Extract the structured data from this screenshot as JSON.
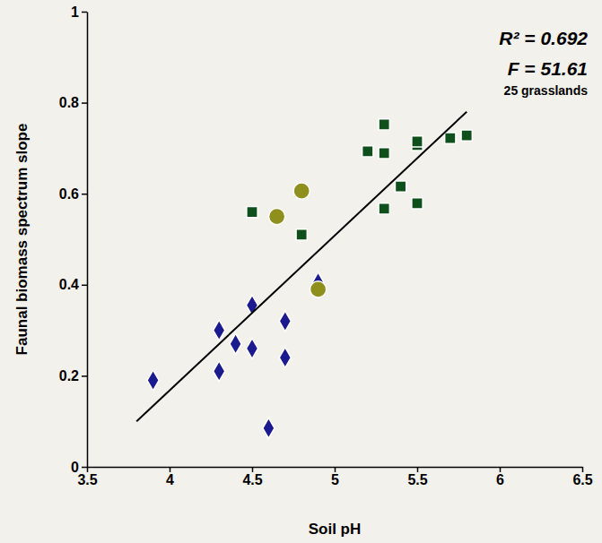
{
  "chart_data": {
    "type": "scatter",
    "x_label": "Soil pH",
    "y_label": "Faunal biomass spectrum slope",
    "annotations": [
      "R² = 0.692",
      "F = 51.61",
      "25 grasslands"
    ],
    "xlim": [
      3.5,
      6.5
    ],
    "xticks": [
      3.5,
      4,
      4.5,
      5,
      5.5,
      6,
      6.5
    ],
    "ylim": [
      0,
      1
    ],
    "yticks": [
      0,
      0.2,
      0.4,
      0.6,
      0.8,
      1
    ],
    "grid": false,
    "series": [
      {
        "type": "scatter",
        "marker": "diamond",
        "color": "#1b1b8f",
        "x": [
          3.9,
          4.3,
          4.3,
          4.4,
          4.5,
          4.5,
          4.7,
          4.7,
          4.6,
          4.9
        ],
        "values": [
          0.19,
          0.3,
          0.21,
          0.27,
          0.355,
          0.26,
          0.32,
          0.24,
          0.085,
          0.405
        ]
      },
      {
        "type": "scatter",
        "marker": "square",
        "color": "#0e4f1c",
        "x": [
          4.5,
          4.8,
          5.2,
          5.3,
          5.3,
          5.3,
          5.4,
          5.5,
          5.5,
          5.5,
          5.7,
          5.8
        ],
        "values": [
          0.56,
          0.51,
          0.693,
          0.752,
          0.689,
          0.567,
          0.616,
          0.707,
          0.715,
          0.579,
          0.722,
          0.728
        ]
      },
      {
        "type": "scatter",
        "marker": "circle",
        "color": "#8f8f1e",
        "x": [
          4.65,
          4.8,
          4.9
        ],
        "values": [
          0.55,
          0.606,
          0.39
        ]
      },
      {
        "type": "line",
        "color": "#000000",
        "x": [
          3.8,
          5.8
        ],
        "values": [
          0.1,
          0.78
        ]
      }
    ]
  }
}
